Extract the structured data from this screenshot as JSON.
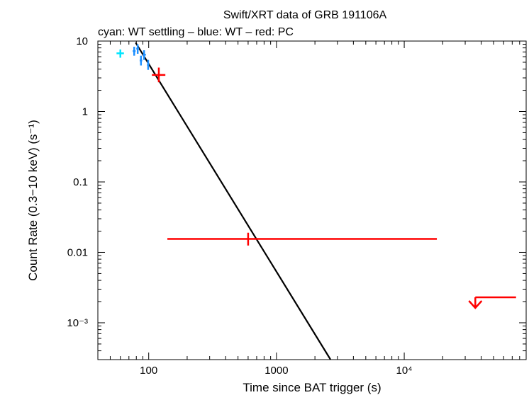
{
  "chart_data": {
    "type": "scatter",
    "title": "Swift/XRT data of GRB 191106A",
    "subtitle": "cyan: WT settling – blue: WT – red: PC",
    "xlabel": "Time since BAT trigger (s)",
    "ylabel": "Count Rate (0.3−10 keV) (s⁻¹)",
    "xscale": "log",
    "yscale": "log",
    "xlim": [
      40,
      90000
    ],
    "ylim": [
      0.0003,
      10
    ],
    "x_ticks": [
      {
        "value": 100,
        "label": "100"
      },
      {
        "value": 1000,
        "label": "1000"
      },
      {
        "value": 10000,
        "label": "10⁴"
      }
    ],
    "y_ticks": [
      {
        "value": 10,
        "label": "10"
      },
      {
        "value": 1,
        "label": "1"
      },
      {
        "value": 0.1,
        "label": "0.1"
      },
      {
        "value": 0.01,
        "label": "0.01"
      },
      {
        "value": 0.001,
        "label": "10⁻³"
      }
    ],
    "series": [
      {
        "name": "WT settling",
        "color": "#00e5ff",
        "points": [
          {
            "x": 60,
            "xerr": [
              56,
              64
            ],
            "y": 6.7,
            "yerr": [
              5.8,
              7.6
            ]
          }
        ]
      },
      {
        "name": "WT",
        "color": "#1e90ff",
        "points": [
          {
            "x": 77,
            "xerr": [
              75,
              79
            ],
            "y": 7.2,
            "yerr": [
              6.2,
              8.3
            ]
          },
          {
            "x": 82,
            "xerr": [
              80,
              84
            ],
            "y": 7.8,
            "yerr": [
              6.6,
              9.0
            ]
          },
          {
            "x": 87,
            "xerr": [
              85,
              89
            ],
            "y": 5.3,
            "yerr": [
              4.5,
              6.2
            ]
          },
          {
            "x": 92,
            "xerr": [
              90,
              95
            ],
            "y": 6.4,
            "yerr": [
              5.4,
              7.4
            ]
          },
          {
            "x": 99,
            "xerr": [
              97,
              101
            ],
            "y": 4.6,
            "yerr": [
              3.9,
              5.4
            ]
          }
        ]
      },
      {
        "name": "PC",
        "color": "#ff0000",
        "points": [
          {
            "x": 120,
            "xerr": [
              106,
              135
            ],
            "y": 3.3,
            "yerr": [
              2.6,
              4.2
            ]
          },
          {
            "x": 600,
            "xerr": [
              140,
              18000
            ],
            "y": 0.0155,
            "yerr": [
              0.0125,
              0.019
            ]
          }
        ],
        "upper_limits": [
          {
            "x": 36000,
            "xerr": [
              36000,
              75000
            ],
            "y": 0.0023
          }
        ]
      }
    ],
    "model": {
      "type": "power-law",
      "color": "#000000",
      "x": [
        79,
        2650
      ],
      "y": [
        9.5,
        0.0003
      ]
    }
  }
}
